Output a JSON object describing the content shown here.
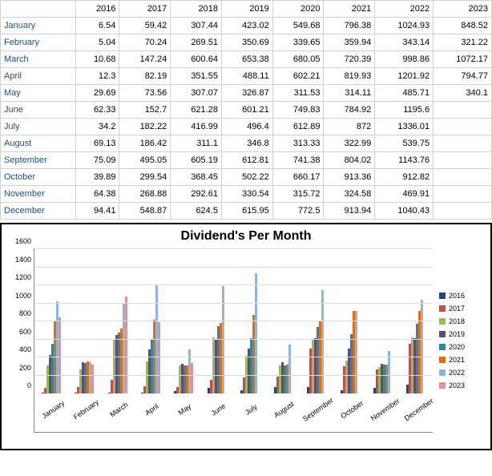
{
  "table": {
    "years": [
      "2016",
      "2017",
      "2018",
      "2019",
      "2020",
      "2021",
      "2022",
      "2023"
    ],
    "months": [
      "January",
      "February",
      "March",
      "April",
      "May",
      "June",
      "July",
      "August",
      "September",
      "October",
      "November",
      "December"
    ],
    "rows": [
      [
        "6.54",
        "59.42",
        "307.44",
        "423.02",
        "549.68",
        "796.38",
        "1024.93",
        "848.52"
      ],
      [
        "5.04",
        "70.24",
        "269.51",
        "350.69",
        "339.65",
        "359.94",
        "343.14",
        "321.22"
      ],
      [
        "10.68",
        "147.24",
        "600.64",
        "653.38",
        "680.05",
        "720.39",
        "998.86",
        "1072.17"
      ],
      [
        "12.3",
        "82.19",
        "351.55",
        "488.11",
        "602.21",
        "819.93",
        "1201.92",
        "794.77"
      ],
      [
        "29.69",
        "73.56",
        "307.07",
        "326.87",
        "311.53",
        "314.11",
        "485.71",
        "340.1"
      ],
      [
        "62.33",
        "152.7",
        "621.28",
        "601.21",
        "749.83",
        "784.92",
        "1195.6",
        ""
      ],
      [
        "34.2",
        "182.22",
        "416.99",
        "496.4",
        "612.89",
        "872",
        "1336.01",
        ""
      ],
      [
        "69.13",
        "186.42",
        "311.1",
        "346.8",
        "313.33",
        "322.99",
        "539.75",
        ""
      ],
      [
        "75.09",
        "495.05",
        "605.19",
        "612.81",
        "741.38",
        "804.02",
        "1143.76",
        ""
      ],
      [
        "39.89",
        "299.54",
        "368.45",
        "502.22",
        "660.17",
        "913.36",
        "912.82",
        ""
      ],
      [
        "64.38",
        "268.88",
        "292.61",
        "330.54",
        "315.72",
        "324.58",
        "469.91",
        ""
      ],
      [
        "94.41",
        "548.87",
        "624.5",
        "615.95",
        "772.5",
        "913.94",
        "1040.43",
        ""
      ]
    ]
  },
  "chart": {
    "title": "Dividend's Per Month",
    "ymax": 1600,
    "ystep": 200,
    "series": [
      {
        "label": "2016",
        "color": "#1f497d"
      },
      {
        "label": "2017",
        "color": "#c0504d"
      },
      {
        "label": "2018",
        "color": "#9bbb59"
      },
      {
        "label": "2019",
        "color": "#604a7b"
      },
      {
        "label": "2020",
        "color": "#31859c"
      },
      {
        "label": "2021",
        "color": "#e46c0a"
      },
      {
        "label": "2022",
        "color": "#8eb4e3"
      },
      {
        "label": "2023",
        "color": "#d99694"
      }
    ]
  }
}
